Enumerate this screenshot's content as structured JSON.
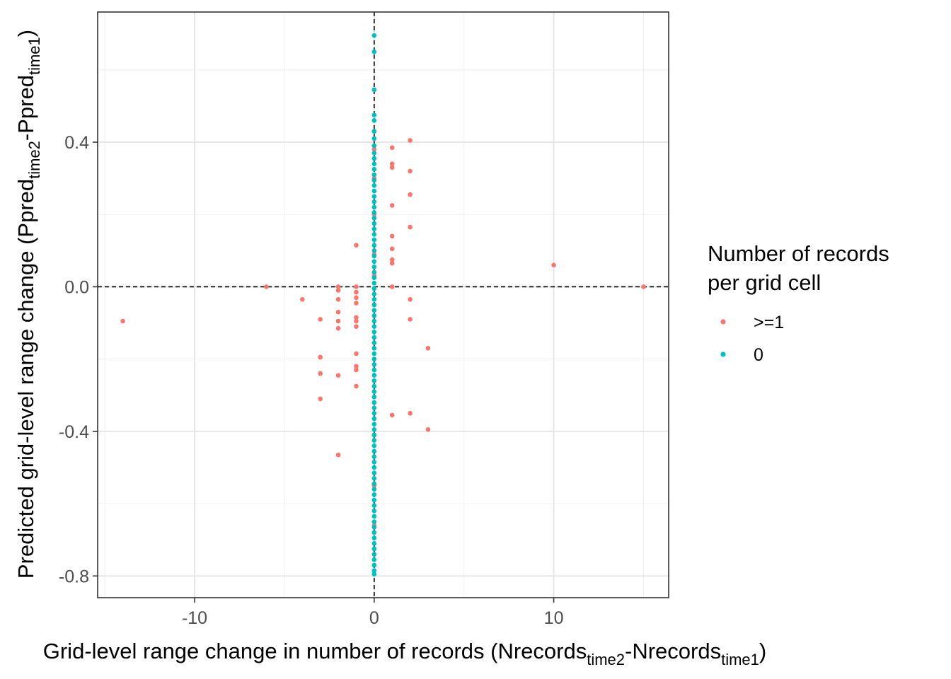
{
  "chart_data": {
    "type": "scatter",
    "title": "",
    "xlabel": {
      "main": "Grid-level range change in number of records (Nrecords",
      "sub1": "time2",
      "mid": "-Nrecords",
      "sub2": "time1",
      "end": ")"
    },
    "ylabel": {
      "main": "Predicted grid-level range change (Ppred",
      "sub1": "time2",
      "mid": "-Ppred",
      "sub2": "time1",
      "end": ")"
    },
    "xlim": [
      -15.4,
      16.4
    ],
    "ylim": [
      -0.86,
      0.76
    ],
    "x_ticks": [
      -10,
      0,
      10
    ],
    "x_tick_labels": [
      "-10",
      "0",
      "10"
    ],
    "y_ticks": [
      -0.8,
      -0.4,
      0.0,
      0.4
    ],
    "y_tick_labels": [
      "-0.8",
      "-0.4",
      "0.0",
      "0.4"
    ],
    "reference_lines": [
      {
        "orientation": "vertical",
        "value": 0,
        "style": "dashed"
      },
      {
        "orientation": "horizontal",
        "value": 0,
        "style": "dashed"
      }
    ],
    "grid": true,
    "legend": {
      "title_lines": [
        "Number of records",
        "per grid cell"
      ],
      "placement": "right",
      "entries": [
        {
          "label": ">=1",
          "color": "#F8766D"
        },
        {
          "label": "0",
          "color": "#00BFC4"
        }
      ]
    },
    "series": [
      {
        "name": ">=1",
        "color": "#F8766D",
        "points": [
          [
            -14,
            -0.095
          ],
          [
            -6,
            0.0
          ],
          [
            -4,
            -0.035
          ],
          [
            -3,
            -0.09
          ],
          [
            -3,
            -0.195
          ],
          [
            -3,
            -0.24
          ],
          [
            -3,
            -0.31
          ],
          [
            -2,
            0.0
          ],
          [
            -2,
            -0.01
          ],
          [
            -2,
            -0.035
          ],
          [
            -2,
            -0.07
          ],
          [
            -2,
            -0.095
          ],
          [
            -2,
            -0.115
          ],
          [
            -2,
            -0.245
          ],
          [
            -2,
            -0.465
          ],
          [
            -1,
            0.115
          ],
          [
            -1,
            0.0
          ],
          [
            -1,
            -0.015
          ],
          [
            -1,
            -0.03
          ],
          [
            -1,
            -0.045
          ],
          [
            -1,
            -0.085
          ],
          [
            -1,
            -0.095
          ],
          [
            -1,
            -0.11
          ],
          [
            -1,
            -0.185
          ],
          [
            -1,
            -0.22
          ],
          [
            -1,
            -0.23
          ],
          [
            -1,
            -0.275
          ],
          [
            1,
            0.385
          ],
          [
            1,
            0.34
          ],
          [
            1,
            0.33
          ],
          [
            1,
            0.225
          ],
          [
            1,
            0.14
          ],
          [
            1,
            0.105
          ],
          [
            1,
            0.075
          ],
          [
            1,
            0.065
          ],
          [
            1,
            0.0
          ],
          [
            1,
            -0.355
          ],
          [
            2,
            0.405
          ],
          [
            2,
            0.32
          ],
          [
            2,
            0.255
          ],
          [
            2,
            0.165
          ],
          [
            2,
            -0.035
          ],
          [
            2,
            -0.09
          ],
          [
            2,
            -0.35
          ],
          [
            3,
            -0.17
          ],
          [
            3,
            -0.395
          ],
          [
            10,
            0.06
          ],
          [
            15,
            0.0
          ],
          [
            0,
            0.43
          ],
          [
            0,
            0.38
          ],
          [
            0,
            0.3
          ],
          [
            0,
            0.2
          ],
          [
            0,
            0.09
          ],
          [
            0,
            0.03
          ],
          [
            0,
            -0.05
          ],
          [
            0,
            -0.17
          ],
          [
            0,
            -0.29
          ],
          [
            0,
            -0.41
          ],
          [
            0,
            -0.55
          ],
          [
            0,
            -0.66
          ],
          [
            0,
            -0.74
          ]
        ]
      },
      {
        "name": "0",
        "color": "#00BFC4",
        "points": [
          [
            0,
            0.695
          ],
          [
            0,
            0.65
          ],
          [
            0,
            0.545
          ],
          [
            0,
            0.475
          ],
          [
            0,
            0.46
          ],
          [
            0,
            0.43
          ],
          [
            0,
            0.41
          ],
          [
            0,
            0.39
          ],
          [
            0,
            0.37
          ],
          [
            0,
            0.355
          ],
          [
            0,
            0.34
          ],
          [
            0,
            0.325
          ],
          [
            0,
            0.31
          ],
          [
            0,
            0.295
          ],
          [
            0,
            0.28
          ],
          [
            0,
            0.265
          ],
          [
            0,
            0.25
          ],
          [
            0,
            0.235
          ],
          [
            0,
            0.22
          ],
          [
            0,
            0.205
          ],
          [
            0,
            0.19
          ],
          [
            0,
            0.175
          ],
          [
            0,
            0.16
          ],
          [
            0,
            0.145
          ],
          [
            0,
            0.13
          ],
          [
            0,
            0.115
          ],
          [
            0,
            0.1
          ],
          [
            0,
            0.085
          ],
          [
            0,
            0.07
          ],
          [
            0,
            0.055
          ],
          [
            0,
            0.04
          ],
          [
            0,
            0.025
          ],
          [
            0,
            0.01
          ],
          [
            0,
            -0.005
          ],
          [
            0,
            -0.02
          ],
          [
            0,
            -0.035
          ],
          [
            0,
            -0.05
          ],
          [
            0,
            -0.065
          ],
          [
            0,
            -0.08
          ],
          [
            0,
            -0.095
          ],
          [
            0,
            -0.11
          ],
          [
            0,
            -0.125
          ],
          [
            0,
            -0.14
          ],
          [
            0,
            -0.155
          ],
          [
            0,
            -0.17
          ],
          [
            0,
            -0.185
          ],
          [
            0,
            -0.2
          ],
          [
            0,
            -0.215
          ],
          [
            0,
            -0.23
          ],
          [
            0,
            -0.245
          ],
          [
            0,
            -0.26
          ],
          [
            0,
            -0.275
          ],
          [
            0,
            -0.29
          ],
          [
            0,
            -0.305
          ],
          [
            0,
            -0.32
          ],
          [
            0,
            -0.335
          ],
          [
            0,
            -0.35
          ],
          [
            0,
            -0.365
          ],
          [
            0,
            -0.38
          ],
          [
            0,
            -0.395
          ],
          [
            0,
            -0.41
          ],
          [
            0,
            -0.425
          ],
          [
            0,
            -0.44
          ],
          [
            0,
            -0.455
          ],
          [
            0,
            -0.47
          ],
          [
            0,
            -0.485
          ],
          [
            0,
            -0.5
          ],
          [
            0,
            -0.515
          ],
          [
            0,
            -0.53
          ],
          [
            0,
            -0.545
          ],
          [
            0,
            -0.56
          ],
          [
            0,
            -0.575
          ],
          [
            0,
            -0.59
          ],
          [
            0,
            -0.605
          ],
          [
            0,
            -0.62
          ],
          [
            0,
            -0.635
          ],
          [
            0,
            -0.65
          ],
          [
            0,
            -0.665
          ],
          [
            0,
            -0.68
          ],
          [
            0,
            -0.695
          ],
          [
            0,
            -0.71
          ],
          [
            0,
            -0.725
          ],
          [
            0,
            -0.74
          ],
          [
            0,
            -0.755
          ],
          [
            0,
            -0.77
          ],
          [
            0,
            -0.785
          ],
          [
            0,
            -0.795
          ]
        ]
      }
    ]
  }
}
